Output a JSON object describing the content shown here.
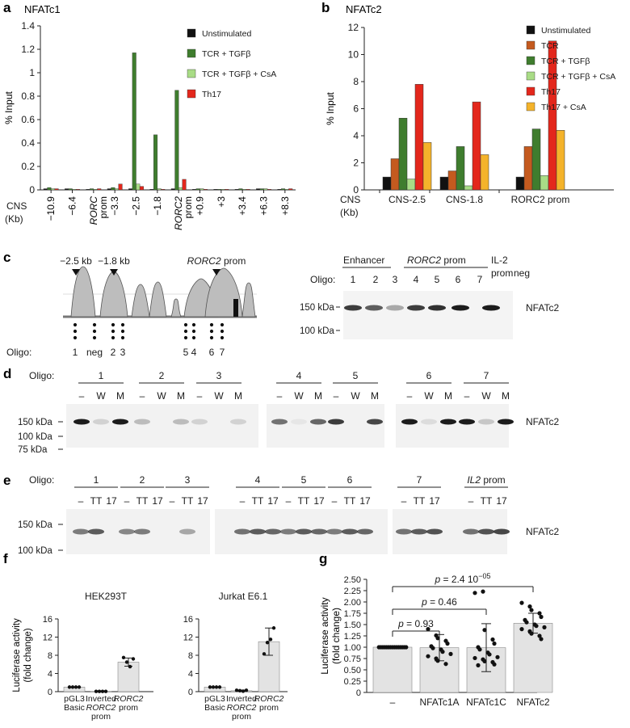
{
  "panels": {
    "a": {
      "letter": "a",
      "title": "NFATc1"
    },
    "b": {
      "letter": "b",
      "title": "NFATc2"
    },
    "c": {
      "letter": "c"
    },
    "d": {
      "letter": "d"
    },
    "e": {
      "letter": "e"
    },
    "f": {
      "letter": "f"
    },
    "g": {
      "letter": "g"
    }
  },
  "colors": {
    "unstim": "#111111",
    "tcr": "#c45a1f",
    "tgfb": "#3f7d2e",
    "csa": "#a9dc86",
    "th17": "#e3271c",
    "th17csa": "#f4b32b",
    "bar": "#e3e3e3",
    "blot": "#1c1c1c",
    "track": "#bdbdbd"
  },
  "panel_c": {
    "oligo_label": "Oligo:",
    "peak_labels": [
      "−2.5 kb",
      "−1.8 kb",
      "RORC2 prom"
    ],
    "oligo_names": [
      "1",
      "neg",
      "2",
      "3",
      "5",
      "4",
      "6",
      "7"
    ],
    "blot_groups": [
      "Enhancer",
      "RORC2 prom",
      "IL-2 prom",
      "neg"
    ],
    "lanes": [
      "1",
      "2",
      "3",
      "4",
      "5",
      "6",
      "7"
    ],
    "markers": [
      "150 kDa",
      "100 kDa"
    ],
    "protein": "NFATc2",
    "band_intensity": [
      0.85,
      0.7,
      0.35,
      0.85,
      0.9,
      1.0,
      1.0
    ]
  },
  "panel_d": {
    "oligo_label": "Oligo:",
    "groups": [
      "1",
      "2",
      "3",
      "4",
      "5",
      "6",
      "7"
    ],
    "lane_labels": [
      "–",
      "W",
      "M"
    ],
    "markers": [
      "150 kDa",
      "100 kDa",
      "75 kDa"
    ],
    "protein": "NFATc2",
    "band_intensity": [
      [
        1.0,
        0.15,
        1.0
      ],
      [
        0.25,
        0.0,
        0.25
      ],
      [
        0.15,
        0.0,
        0.15
      ],
      [
        0.6,
        0.05,
        0.65
      ],
      [
        0.85,
        0.0,
        0.8
      ],
      [
        1.0,
        0.1,
        1.0
      ],
      [
        1.0,
        0.2,
        1.0
      ]
    ]
  },
  "panel_e": {
    "oligo_label": "Oligo:",
    "groups": [
      "1",
      "2",
      "3",
      "4",
      "5",
      "6",
      "7",
      "IL2 prom"
    ],
    "lane_labels": [
      "–",
      "TT",
      "17"
    ],
    "markers": [
      "150 kDa",
      "100 kDa"
    ],
    "protein": "NFATc2",
    "band_intensity": [
      [
        0.55,
        0.7,
        0.0
      ],
      [
        0.5,
        0.55,
        0.0
      ],
      [
        0.0,
        0.35,
        0.0
      ],
      [
        0.6,
        0.7,
        0.65
      ],
      [
        0.55,
        0.7,
        0.65
      ],
      [
        0.55,
        0.7,
        0.65
      ],
      [
        0.6,
        0.7,
        0.75
      ],
      [
        0.6,
        0.75,
        0.8
      ]
    ]
  },
  "chart_data": [
    {
      "id": "a",
      "type": "bar",
      "ylabel": "% Input",
      "ylim": [
        0,
        1.4
      ],
      "yticks": [
        "0",
        "0.2",
        "0.4",
        "0.6",
        "0.8",
        "1",
        "1.2",
        "1.4"
      ],
      "categories": [
        "−10.9",
        "−6.4",
        "RORC prom",
        "−3.3",
        "−2.5",
        "−1.8",
        "RORC2 prom",
        "+0.9",
        "+3",
        "+3.4",
        "+6.3",
        "+8.3"
      ],
      "x_axis_title": [
        "CNS",
        "(Kb)"
      ],
      "series": [
        {
          "name": "Unstimulated",
          "values": [
            0.01,
            0.01,
            0.0,
            0.01,
            0.01,
            0.0,
            0.01,
            0.0,
            0.0,
            0.0,
            0.01,
            0.0
          ]
        },
        {
          "name": "TCR + TGFβ",
          "values": [
            0.02,
            0.01,
            0.01,
            0.02,
            1.17,
            0.47,
            0.85,
            0.01,
            0.0,
            0.01,
            0.01,
            0.01
          ]
        },
        {
          "name": "TCR + TGFβ + CsA",
          "values": [
            0.01,
            0.0,
            0.0,
            0.01,
            0.05,
            0.01,
            0.02,
            0.01,
            0.0,
            0.0,
            0.01,
            0.0
          ]
        },
        {
          "name": "Th17",
          "values": [
            0.01,
            0.0,
            0.01,
            0.05,
            0.03,
            0.0,
            0.09,
            0.0,
            0.0,
            0.0,
            0.0,
            0.01
          ]
        }
      ]
    },
    {
      "id": "b",
      "type": "bar",
      "ylabel": "% Input",
      "ylim": [
        0,
        12
      ],
      "yticks": [
        "0",
        "2",
        "4",
        "6",
        "8",
        "10",
        "12"
      ],
      "categories": [
        "CNS-2.5",
        "CNS-1.8",
        "RORC2 prom"
      ],
      "x_axis_title": [
        "CNS",
        "(Kb)"
      ],
      "series": [
        {
          "name": "Unstimulated",
          "values": [
            0.95,
            0.95,
            0.95
          ]
        },
        {
          "name": "TCR",
          "values": [
            2.3,
            1.4,
            3.2
          ]
        },
        {
          "name": "TCR + TGFβ",
          "values": [
            5.3,
            3.2,
            4.5
          ]
        },
        {
          "name": "TCR + TGFβ + CsA",
          "values": [
            0.8,
            0.3,
            1.05
          ]
        },
        {
          "name": "Th17",
          "values": [
            7.8,
            6.5,
            11.0
          ]
        },
        {
          "name": "Th17 + CsA",
          "values": [
            3.5,
            2.6,
            4.4
          ]
        }
      ]
    },
    {
      "id": "f",
      "type": "bar",
      "ylabel": [
        "Luciferase activity",
        "(fold change)"
      ],
      "categories": [
        [
          "pGL3",
          "Basic"
        ],
        [
          "Inverted",
          "RORC2",
          "prom"
        ],
        [
          "RORC2",
          "prom"
        ]
      ],
      "subplots": [
        {
          "title": "HEK293T",
          "ylim": [
            0,
            16
          ],
          "yticks": [
            "0",
            "4",
            "8",
            "12",
            "16"
          ],
          "values": [
            1.0,
            0.05,
            6.5
          ],
          "error": [
            0.05,
            0.02,
            0.9
          ],
          "points": [
            [
              1.0,
              1.0,
              1.0,
              1.0
            ],
            [
              0.05,
              0.05,
              0.05,
              0.05
            ],
            [
              7.5,
              6.5,
              5.5,
              7.2
            ]
          ]
        },
        {
          "title": "Jurkat E6.1",
          "ylim": [
            0,
            16
          ],
          "yticks": [
            "0",
            "4",
            "8",
            "12",
            "16"
          ],
          "values": [
            1.0,
            0.2,
            11.0
          ],
          "error": [
            0.05,
            0.15,
            3.0
          ],
          "points": [
            [
              1.0,
              1.0,
              1.0,
              1.0
            ],
            [
              0.3,
              0.2,
              0.1,
              0.3
            ],
            [
              8.3,
              10.8,
              11.5,
              14.0
            ]
          ]
        }
      ]
    },
    {
      "id": "g",
      "type": "bar",
      "ylabel": [
        "Luciferase activity",
        "(fold change)"
      ],
      "ylim": [
        0,
        2.5
      ],
      "yticks": [
        "0",
        "0.25",
        "0.50",
        "0.75",
        "1.00",
        "1.25",
        "1.50",
        "1.75",
        "2.00",
        "2.25",
        "2.50"
      ],
      "categories": [
        "–",
        "NFATc1A",
        "NFATc1C",
        "NFATc2"
      ],
      "values": [
        1.0,
        0.99,
        0.99,
        1.53
      ],
      "error": [
        0.0,
        0.29,
        0.53,
        0.22
      ],
      "points": [
        [
          1,
          1,
          1,
          1,
          1,
          1,
          1,
          1,
          1,
          1,
          1,
          1,
          1,
          1,
          1
        ],
        [
          1.4,
          1.26,
          1.2,
          1.14,
          1.08,
          1.02,
          0.98,
          0.95,
          0.9,
          0.85,
          0.8,
          0.75,
          0.7,
          0.63
        ],
        [
          2.2,
          2.23,
          1.38,
          1.17,
          1.08,
          1.0,
          0.95,
          0.88,
          0.84,
          0.78,
          0.76,
          0.73,
          0.69,
          0.67,
          0.62,
          0.6
        ],
        [
          1.98,
          1.9,
          1.82,
          1.75,
          1.67,
          1.6,
          1.55,
          1.5,
          1.47,
          1.44,
          1.4,
          1.35,
          1.3,
          1.25,
          1.18
        ]
      ],
      "brackets": [
        {
          "from": 0,
          "to": 1,
          "label": "p = 0.93"
        },
        {
          "from": 0,
          "to": 2,
          "label": "p = 0.46"
        },
        {
          "from": 0,
          "to": 3,
          "label": "p = 2.4 10−05"
        }
      ]
    }
  ]
}
